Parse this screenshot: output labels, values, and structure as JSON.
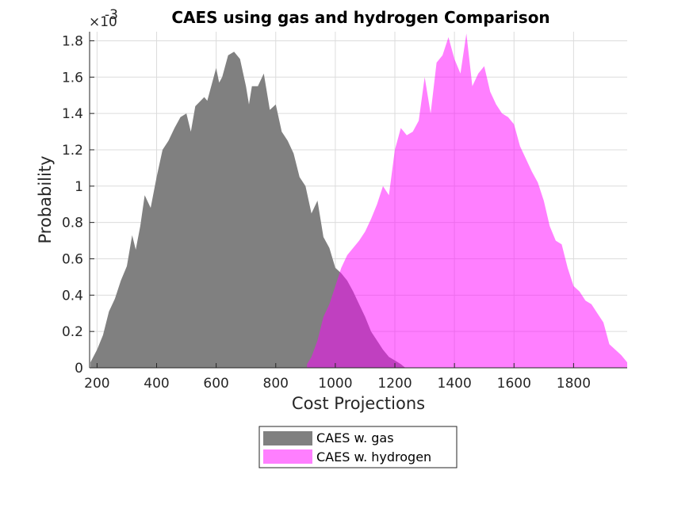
{
  "chart_data": {
    "type": "area",
    "title": "CAES using gas and hydrogen Comparison",
    "xlabel": "Cost Projections",
    "ylabel": "Probability",
    "y_exponent_label": "×10",
    "y_exponent_power": "-3",
    "xlim": [
      175,
      1980
    ],
    "ylim": [
      0,
      1.85
    ],
    "xticks": [
      200,
      400,
      600,
      800,
      1000,
      1200,
      1400,
      1600,
      1800
    ],
    "yticks": [
      0,
      0.2,
      0.4,
      0.6,
      0.8,
      1,
      1.2,
      1.4,
      1.6,
      1.8
    ],
    "grid": true,
    "legend_position": "bottom-center-outside",
    "series": [
      {
        "name": "CAES w. gas",
        "color": "#808080",
        "opacity": 1.0,
        "x": [
          178,
          200,
          220,
          240,
          260,
          280,
          300,
          318,
          330,
          345,
          360,
          380,
          400,
          420,
          440,
          460,
          480,
          500,
          515,
          530,
          560,
          570,
          600,
          610,
          620,
          640,
          660,
          680,
          700,
          710,
          720,
          740,
          760,
          780,
          800,
          820,
          840,
          860,
          880,
          900,
          920,
          940,
          960,
          980,
          1000,
          1020,
          1040,
          1060,
          1080,
          1100,
          1120,
          1140,
          1160,
          1180,
          1200,
          1220,
          1235
        ],
        "y": [
          0.03,
          0.1,
          0.18,
          0.31,
          0.38,
          0.48,
          0.56,
          0.73,
          0.65,
          0.78,
          0.95,
          0.88,
          1.05,
          1.2,
          1.25,
          1.32,
          1.38,
          1.4,
          1.3,
          1.44,
          1.49,
          1.47,
          1.65,
          1.57,
          1.6,
          1.72,
          1.74,
          1.7,
          1.55,
          1.45,
          1.55,
          1.55,
          1.62,
          1.42,
          1.45,
          1.3,
          1.25,
          1.18,
          1.05,
          1.0,
          0.85,
          0.92,
          0.72,
          0.66,
          0.55,
          0.52,
          0.48,
          0.42,
          0.35,
          0.28,
          0.2,
          0.15,
          0.1,
          0.06,
          0.04,
          0.02,
          0.0
        ]
      },
      {
        "name": "CAES w. hydrogen",
        "color": "#ff00ff",
        "opacity": 0.5,
        "x": [
          905,
          920,
          940,
          960,
          980,
          1000,
          1020,
          1040,
          1060,
          1080,
          1100,
          1120,
          1140,
          1160,
          1180,
          1200,
          1220,
          1240,
          1260,
          1280,
          1300,
          1320,
          1340,
          1360,
          1380,
          1400,
          1420,
          1440,
          1460,
          1480,
          1500,
          1520,
          1540,
          1560,
          1580,
          1600,
          1620,
          1640,
          1660,
          1680,
          1700,
          1720,
          1740,
          1760,
          1780,
          1800,
          1820,
          1840,
          1860,
          1880,
          1900,
          1920,
          1940,
          1960,
          1980
        ],
        "y": [
          0.02,
          0.06,
          0.15,
          0.28,
          0.35,
          0.45,
          0.55,
          0.62,
          0.66,
          0.7,
          0.75,
          0.82,
          0.9,
          1.0,
          0.95,
          1.2,
          1.32,
          1.28,
          1.3,
          1.36,
          1.6,
          1.4,
          1.68,
          1.72,
          1.82,
          1.7,
          1.62,
          1.84,
          1.55,
          1.62,
          1.66,
          1.52,
          1.45,
          1.4,
          1.38,
          1.34,
          1.22,
          1.15,
          1.08,
          1.02,
          0.92,
          0.78,
          0.7,
          0.68,
          0.55,
          0.45,
          0.42,
          0.37,
          0.35,
          0.3,
          0.25,
          0.13,
          0.1,
          0.07,
          0.03
        ]
      }
    ]
  }
}
